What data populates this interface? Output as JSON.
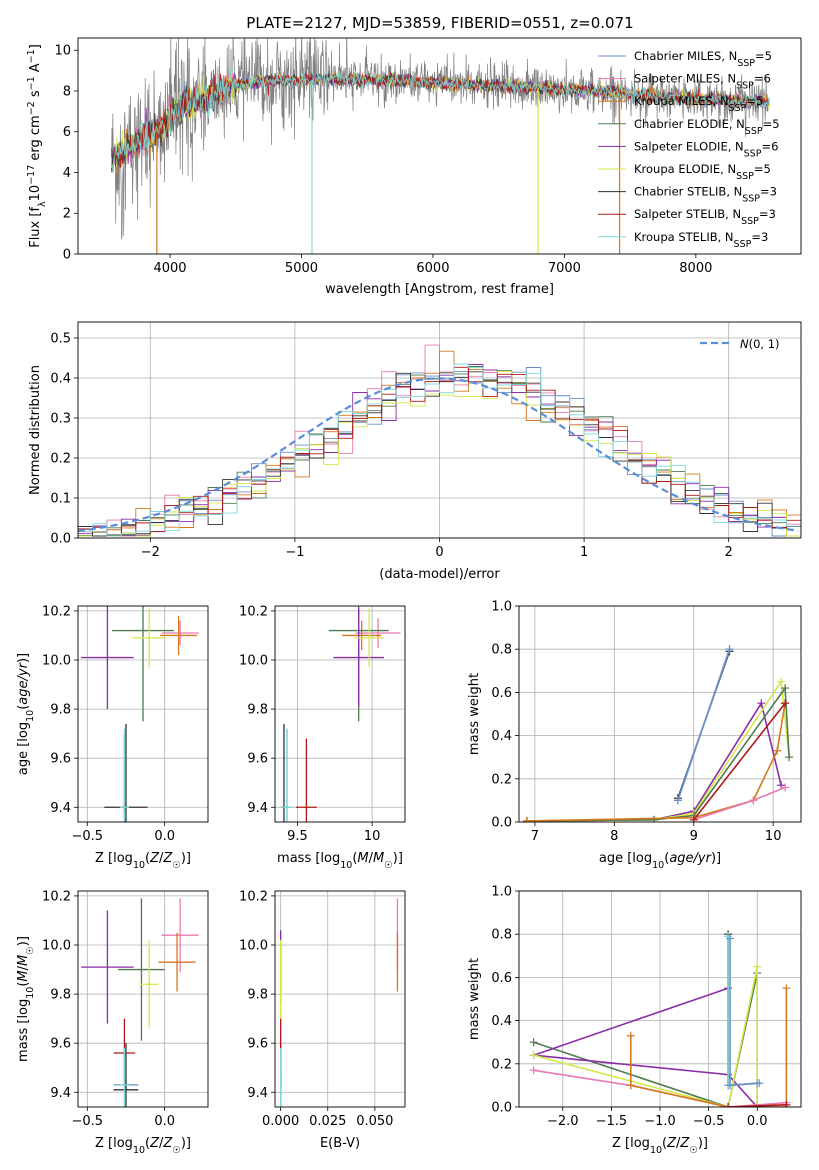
{
  "figure": {
    "title": "PLATE=2127, MJD=53859, FIBERID=0551, z=0.071"
  },
  "colors": {
    "Chabrier MILES": "#6a8fc8",
    "Salpeter MILES": "#e87ab0",
    "Kroupa MILES": "#d4781e",
    "Chabrier ELODIE": "#4f7a4f",
    "Salpeter ELODIE": "#8b2ca8",
    "Kroupa ELODIE": "#d2e848",
    "Chabrier STELIB": "#333333",
    "Salpeter STELIB": "#b01818",
    "Kroupa STELIB": "#7fd8d8",
    "data": "#808080",
    "normal": "#5a8fd8"
  },
  "chart_data": [
    {
      "id": "spectrum",
      "type": "line",
      "title": "PLATE=2127, MJD=53859, FIBERID=0551, z=0.071",
      "xlabel": "wavelength [Angstrom, rest frame]",
      "ylabel": "Flux [f_λ 10^-17 erg cm^-2 s^-1 A^-1]",
      "xlim": [
        3300,
        8800
      ],
      "ylim": [
        0,
        10.6
      ],
      "xticks": [
        4000,
        5000,
        6000,
        7000,
        8000
      ],
      "yticks": [
        0,
        2,
        4,
        6,
        8,
        10
      ],
      "legend_position": "upper-right",
      "legend": [
        {
          "name": "Chabrier MILES",
          "main": "Chabrier MILES, N",
          "sub": "SSP",
          "tail": "=5"
        },
        {
          "name": "Salpeter MILES",
          "main": "Salpeter MILES, N",
          "sub": "SSP",
          "tail": "=6"
        },
        {
          "name": "Kroupa MILES",
          "main": "Kroupa MILES, N",
          "sub": "SSP",
          "tail": "=5"
        },
        {
          "name": "Chabrier ELODIE",
          "main": "Chabrier ELODIE, N",
          "sub": "SSP",
          "tail": "=5"
        },
        {
          "name": "Salpeter ELODIE",
          "main": "Salpeter ELODIE, N",
          "sub": "SSP",
          "tail": "=6"
        },
        {
          "name": "Kroupa ELODIE",
          "main": "Kroupa ELODIE, N",
          "sub": "SSP",
          "tail": "=5"
        },
        {
          "name": "Chabrier STELIB",
          "main": "Chabrier STELIB, N",
          "sub": "SSP",
          "tail": "=3"
        },
        {
          "name": "Salpeter STELIB",
          "main": "Salpeter STELIB, N",
          "sub": "SSP",
          "tail": "=3"
        },
        {
          "name": "Kroupa STELIB",
          "main": "Kroupa STELIB, N",
          "sub": "SSP",
          "tail": "=3"
        }
      ],
      "continuum": [
        [
          3550,
          4.6
        ],
        [
          3650,
          5.1
        ],
        [
          3800,
          5.7
        ],
        [
          3950,
          6.3
        ],
        [
          4100,
          7.3
        ],
        [
          4300,
          7.7
        ],
        [
          4500,
          8.3
        ],
        [
          4800,
          8.55
        ],
        [
          5000,
          8.5
        ],
        [
          5200,
          8.6
        ],
        [
          5500,
          8.55
        ],
        [
          5800,
          8.5
        ],
        [
          6000,
          8.4
        ],
        [
          6300,
          8.3
        ],
        [
          6563,
          8.2
        ],
        [
          6800,
          8.15
        ],
        [
          7000,
          8.05
        ],
        [
          7400,
          7.95
        ],
        [
          7500,
          7.8
        ],
        [
          7800,
          7.7
        ],
        [
          8200,
          7.55
        ],
        [
          8600,
          7.45
        ]
      ],
      "model_dropouts": [
        {
          "model": "Kroupa MILES",
          "x": 3900
        },
        {
          "model": "Kroupa STELIB",
          "x": 5080
        },
        {
          "model": "Kroupa ELODIE",
          "x": 6800
        },
        {
          "model": "Kroupa MILES",
          "x": 7420
        }
      ]
    },
    {
      "id": "residuals",
      "type": "step",
      "xlabel": "(data-model)/error",
      "ylabel": "Normed distribution",
      "xlim": [
        -2.5,
        2.5
      ],
      "ylim": [
        0,
        0.54
      ],
      "xticks": [
        -2,
        -1,
        0,
        1,
        2
      ],
      "xtick_labels": [
        "−2",
        "−1",
        "0",
        "1",
        "2"
      ],
      "yticks": [
        0.0,
        0.1,
        0.2,
        0.3,
        0.4,
        0.5
      ],
      "legend_position": "upper-right",
      "reference": {
        "label": "N(0,1)",
        "mean": 0,
        "sigma": 1
      }
    },
    {
      "id": "age_vs_Z",
      "type": "errorbar",
      "xlabel": "Z [log10(Z/Z☉)]",
      "ylabel": "age [log10(age/yr)]",
      "xlim": [
        -0.56,
        0.28
      ],
      "ylim": [
        9.34,
        10.22
      ],
      "xticks": [
        -0.5,
        0.0
      ],
      "xtick_labels": [
        "−0.5",
        "0.0"
      ],
      "yticks": [
        9.4,
        9.6,
        9.8,
        10.0,
        10.2
      ],
      "points": [
        {
          "model": "Chabrier MILES",
          "x": -0.26,
          "y": 9.4,
          "xerr": 0.02,
          "yerr": 0.3
        },
        {
          "model": "Salpeter MILES",
          "x": 0.1,
          "y": 10.11,
          "xerr": 0.12,
          "yerr": 0.05
        },
        {
          "model": "Kroupa MILES",
          "x": 0.09,
          "y": 10.1,
          "xerr": 0.12,
          "yerr": 0.08
        },
        {
          "model": "Chabrier ELODIE",
          "x": -0.14,
          "y": 10.12,
          "xerr": 0.2,
          "yerr": 0.37
        },
        {
          "model": "Salpeter ELODIE",
          "x": -0.37,
          "y": 10.01,
          "xerr": 0.17,
          "yerr": 0.21
        },
        {
          "model": "Kroupa ELODIE",
          "x": -0.1,
          "y": 10.09,
          "xerr": 0.11,
          "yerr": 0.12
        },
        {
          "model": "Chabrier STELIB",
          "x": -0.25,
          "y": 9.4,
          "xerr": 0.14,
          "yerr": 0.34
        },
        {
          "model": "Salpeter STELIB",
          "x": -0.26,
          "y": 9.4,
          "xerr": 0.02,
          "yerr": 0.02
        },
        {
          "model": "Kroupa STELIB",
          "x": -0.26,
          "y": 9.4,
          "xerr": 0.03,
          "yerr": 0.32
        }
      ]
    },
    {
      "id": "age_vs_mass",
      "type": "errorbar",
      "xlabel": "mass [log10(M/M☉)]",
      "ylabel": "",
      "xlim": [
        9.35,
        10.22
      ],
      "ylim": [
        9.34,
        10.22
      ],
      "xticks": [
        9.5,
        10.0
      ],
      "yticks": [
        9.4,
        9.6,
        9.8,
        10.0,
        10.2
      ],
      "points": [
        {
          "model": "Chabrier MILES",
          "x": 9.43,
          "y": 9.4,
          "xerr": 0.03,
          "yerr": 0.32
        },
        {
          "model": "Salpeter MILES",
          "x": 10.04,
          "y": 10.11,
          "xerr": 0.15,
          "yerr": 0.06
        },
        {
          "model": "Kroupa MILES",
          "x": 9.93,
          "y": 10.1,
          "xerr": 0.13,
          "yerr": 0.06
        },
        {
          "model": "Chabrier ELODIE",
          "x": 9.91,
          "y": 10.12,
          "xerr": 0.2,
          "yerr": 0.37
        },
        {
          "model": "Salpeter ELODIE",
          "x": 9.91,
          "y": 10.01,
          "xerr": 0.17,
          "yerr": 0.2
        },
        {
          "model": "Kroupa ELODIE",
          "x": 9.98,
          "y": 10.09,
          "xerr": 0.1,
          "yerr": 0.12
        },
        {
          "model": "Chabrier STELIB",
          "x": 9.41,
          "y": 9.4,
          "xerr": 0.02,
          "yerr": 0.34
        },
        {
          "model": "Salpeter STELIB",
          "x": 9.56,
          "y": 9.4,
          "xerr": 0.07,
          "yerr": 0.28
        },
        {
          "model": "Kroupa STELIB",
          "x": 9.43,
          "y": 9.4,
          "xerr": 0.04,
          "yerr": 0.32
        }
      ]
    },
    {
      "id": "mass_weight_vs_age",
      "type": "line",
      "xlabel": "age [log10(age/yr)]",
      "ylabel": "mass weight",
      "xlim": [
        6.8,
        10.35
      ],
      "ylim": [
        0,
        1
      ],
      "xticks": [
        7,
        8,
        9,
        10
      ],
      "yticks": [
        0.0,
        0.2,
        0.4,
        0.6,
        0.8,
        1.0
      ],
      "series": [
        {
          "model": "Chabrier STELIB",
          "points": [
            [
              8.8,
              0.11
            ],
            [
              9.45,
              0.79
            ]
          ]
        },
        {
          "model": "Kroupa STELIB",
          "points": [
            [
              8.8,
              0.1
            ],
            [
              9.45,
              0.8
            ]
          ]
        },
        {
          "model": "Chabrier MILES",
          "points": [
            [
              8.8,
              0.1
            ],
            [
              9.45,
              0.8
            ]
          ]
        },
        {
          "model": "Salpeter ELODIE",
          "points": [
            [
              6.9,
              0.005
            ],
            [
              8.5,
              0.01
            ],
            [
              9.0,
              0.05
            ],
            [
              9.85,
              0.55
            ],
            [
              10.1,
              0.17
            ]
          ]
        },
        {
          "model": "Kroupa ELODIE",
          "points": [
            [
              6.9,
              0.005
            ],
            [
              8.5,
              0.01
            ],
            [
              9.0,
              0.04
            ],
            [
              10.1,
              0.65
            ],
            [
              10.2,
              0.3
            ]
          ]
        },
        {
          "model": "Chabrier ELODIE",
          "points": [
            [
              6.9,
              0.005
            ],
            [
              8.5,
              0.01
            ],
            [
              9.0,
              0.03
            ],
            [
              10.15,
              0.62
            ],
            [
              10.2,
              0.3
            ]
          ]
        },
        {
          "model": "Kroupa MILES",
          "points": [
            [
              6.9,
              0.005
            ],
            [
              9.0,
              0.02
            ],
            [
              9.75,
              0.1
            ],
            [
              10.05,
              0.33
            ],
            [
              10.15,
              0.55
            ]
          ]
        },
        {
          "model": "Salpeter MILES",
          "points": [
            [
              9.0,
              0.01
            ],
            [
              9.75,
              0.1
            ],
            [
              10.15,
              0.16
            ]
          ]
        },
        {
          "model": "Salpeter STELIB",
          "points": [
            [
              9.0,
              0.01
            ],
            [
              10.15,
              0.55
            ]
          ]
        }
      ]
    },
    {
      "id": "mass_vs_Z",
      "type": "errorbar",
      "xlabel": "Z [log10(Z/Z☉)]",
      "ylabel": "mass [log10(M/M☉)]",
      "xlim": [
        -0.56,
        0.28
      ],
      "ylim": [
        9.34,
        10.22
      ],
      "xticks": [
        -0.5,
        0.0
      ],
      "xtick_labels": [
        "−0.5",
        "0.0"
      ],
      "yticks": [
        9.4,
        9.6,
        9.8,
        10.0,
        10.2
      ],
      "points": [
        {
          "model": "Chabrier MILES",
          "x": -0.25,
          "y": 9.43,
          "xerr": 0.08,
          "yerr": 0.02
        },
        {
          "model": "Salpeter MILES",
          "x": 0.1,
          "y": 10.04,
          "xerr": 0.12,
          "yerr": 0.15
        },
        {
          "model": "Kroupa MILES",
          "x": 0.08,
          "y": 9.93,
          "xerr": 0.12,
          "yerr": 0.12
        },
        {
          "model": "Chabrier ELODIE",
          "x": -0.15,
          "y": 9.9,
          "xerr": 0.15,
          "yerr": 0.29
        },
        {
          "model": "Salpeter ELODIE",
          "x": -0.37,
          "y": 9.91,
          "xerr": 0.17,
          "yerr": 0.23
        },
        {
          "model": "Kroupa ELODIE",
          "x": -0.1,
          "y": 9.84,
          "xerr": 0.06,
          "yerr": 0.18
        },
        {
          "model": "Chabrier STELIB",
          "x": -0.25,
          "y": 9.41,
          "xerr": 0.08,
          "yerr": 0.19
        },
        {
          "model": "Salpeter STELIB",
          "x": -0.26,
          "y": 9.56,
          "xerr": 0.07,
          "yerr": 0.14
        },
        {
          "model": "Kroupa STELIB",
          "x": -0.26,
          "y": 9.43,
          "xerr": 0.03,
          "yerr": 0.15
        }
      ]
    },
    {
      "id": "mass_vs_ebv",
      "type": "errorbar",
      "xlabel": "E(B-V)",
      "ylabel": "",
      "xlim": [
        -0.003,
        0.066
      ],
      "ylim": [
        9.34,
        10.22
      ],
      "xticks": [
        0.0,
        0.025,
        0.05
      ],
      "xtick_labels": [
        "0.000",
        "0.025",
        "0.050"
      ],
      "yticks": [
        9.4,
        9.6,
        9.8,
        10.0,
        10.2
      ],
      "points": [
        {
          "model": "Chabrier MILES",
          "x": 0.0,
          "y": 9.43,
          "xerr": 0,
          "yerr": 0.04
        },
        {
          "model": "Salpeter MILES",
          "x": 0.062,
          "y": 10.04,
          "xerr": 0,
          "yerr": 0.15
        },
        {
          "model": "Kroupa MILES",
          "x": 0.062,
          "y": 9.93,
          "xerr": 0,
          "yerr": 0.12
        },
        {
          "model": "Chabrier ELODIE",
          "x": 0.0,
          "y": 9.9,
          "xerr": 0,
          "yerr": 0.1
        },
        {
          "model": "Salpeter ELODIE",
          "x": 0.0,
          "y": 9.91,
          "xerr": 0,
          "yerr": 0.15
        },
        {
          "model": "Kroupa ELODIE",
          "x": 0.0,
          "y": 9.84,
          "xerr": 0,
          "yerr": 0.18
        },
        {
          "model": "Chabrier STELIB",
          "x": 0.0,
          "y": 9.41,
          "xerr": 0,
          "yerr": 0.19
        },
        {
          "model": "Salpeter STELIB",
          "x": 0.0,
          "y": 9.56,
          "xerr": 0,
          "yerr": 0.14
        },
        {
          "model": "Kroupa STELIB",
          "x": 0.0,
          "y": 9.43,
          "xerr": 0,
          "yerr": 0.15
        }
      ]
    },
    {
      "id": "mass_weight_vs_Z",
      "type": "line",
      "xlabel": "Z [log10(Z/Z☉)]",
      "ylabel": "mass weight",
      "xlim": [
        -2.45,
        0.45
      ],
      "ylim": [
        0,
        1
      ],
      "xticks": [
        -2.0,
        -1.5,
        -1.0,
        -0.5,
        0.0
      ],
      "xtick_labels": [
        "−2.0",
        "−1.5",
        "−1.0",
        "−0.5",
        "0.0"
      ],
      "yticks": [
        0.0,
        0.2,
        0.4,
        0.6,
        0.8,
        1.0
      ],
      "series": [
        {
          "model": "Chabrier ELODIE",
          "points": [
            [
              -2.3,
              0.3
            ],
            [
              -0.3,
              0.0
            ],
            [
              0.0,
              0.62
            ],
            [
              0.0,
              0.0
            ]
          ]
        },
        {
          "model": "Salpeter ELODIE",
          "points": [
            [
              -0.3,
              0.55
            ],
            [
              -2.3,
              0.24
            ],
            [
              -0.3,
              0.15
            ],
            [
              0.0,
              0.0
            ]
          ]
        },
        {
          "model": "Kroupa ELODIE",
          "points": [
            [
              -2.3,
              0.24
            ],
            [
              -0.3,
              0.0
            ],
            [
              0.0,
              0.65
            ],
            [
              0.0,
              0.0
            ]
          ]
        },
        {
          "model": "Salpeter MILES",
          "points": [
            [
              -2.3,
              0.17
            ],
            [
              -1.3,
              0.1
            ],
            [
              -0.3,
              0.0
            ],
            [
              0.3,
              0.02
            ]
          ]
        },
        {
          "model": "Kroupa MILES",
          "points": [
            [
              -1.3,
              0.33
            ],
            [
              -1.3,
              0.1
            ],
            [
              -0.3,
              0.0
            ],
            [
              0.3,
              0.0
            ],
            [
              0.3,
              0.55
            ]
          ]
        },
        {
          "model": "Chabrier STELIB",
          "points": [
            [
              -0.3,
              0.8
            ],
            [
              -0.3,
              0.1
            ],
            [
              0.0,
              0.11
            ]
          ]
        },
        {
          "model": "Kroupa STELIB",
          "points": [
            [
              -0.3,
              0.79
            ],
            [
              -0.3,
              0.1
            ],
            [
              0.0,
              0.11
            ]
          ]
        },
        {
          "model": "Chabrier MILES",
          "points": [
            [
              -0.28,
              0.78
            ],
            [
              -0.28,
              0.1
            ],
            [
              0.02,
              0.11
            ]
          ]
        },
        {
          "model": "Salpeter STELIB",
          "points": [
            [
              -0.3,
              0.0
            ],
            [
              0.3,
              0.01
            ]
          ]
        }
      ]
    }
  ]
}
